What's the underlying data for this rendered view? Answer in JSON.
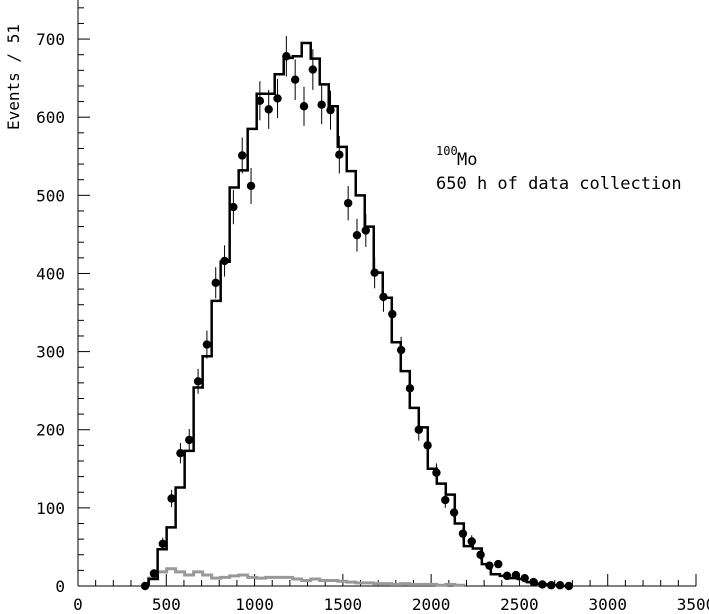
{
  "chart_data": {
    "type": "line",
    "ylabel": "Events / 51",
    "xlim": [
      0,
      3500
    ],
    "ylim": [
      0,
      750
    ],
    "x_ticks": [
      "0",
      "500",
      "1000",
      "1500",
      "2000",
      "2500",
      "3000",
      "3500"
    ],
    "y_ticks": [
      "0",
      "100",
      "200",
      "300",
      "400",
      "500",
      "600",
      "700"
    ],
    "annotation": {
      "isotope_mass": "100",
      "isotope_symbol": "Mo",
      "text": "650 h of data collection"
    },
    "bin_width": 51,
    "series": [
      {
        "kind": "data-points",
        "x": [
          380,
          430,
          480,
          530,
          580,
          630,
          680,
          730,
          780,
          830,
          880,
          930,
          980,
          1030,
          1080,
          1130,
          1180,
          1230,
          1280,
          1330,
          1380,
          1430,
          1480,
          1530,
          1580,
          1630,
          1680,
          1730,
          1780,
          1830,
          1880,
          1930,
          1980,
          2030,
          2080,
          2130,
          2180,
          2230,
          2280,
          2330,
          2380,
          2430,
          2480,
          2530,
          2580,
          2630,
          2680,
          2730,
          2780
        ],
        "y": [
          0,
          16,
          54,
          112,
          170,
          187,
          262,
          309,
          388,
          416,
          485,
          551,
          512,
          621,
          610,
          624,
          678,
          648,
          614,
          661,
          616,
          609,
          552,
          490,
          449,
          455,
          401,
          370,
          348,
          302,
          253,
          200,
          180,
          145,
          110,
          94,
          67,
          57,
          40,
          26,
          28,
          13,
          14,
          10,
          5,
          2,
          1,
          1,
          0
        ],
        "yerr": [
          2,
          4,
          8,
          11,
          13,
          14,
          16,
          18,
          20,
          20,
          22,
          23,
          23,
          25,
          25,
          25,
          26,
          26,
          25,
          26,
          25,
          25,
          24,
          22,
          21,
          21,
          20,
          19,
          19,
          17,
          16,
          14,
          13,
          12,
          10,
          10,
          8,
          8,
          6,
          5,
          5,
          4,
          4,
          3,
          2,
          1,
          1,
          1,
          1
        ]
      },
      {
        "kind": "model-histogram",
        "bin_edges": [
          400,
          451,
          502,
          553,
          604,
          655,
          706,
          757,
          808,
          859,
          910,
          961,
          1012,
          1063,
          1114,
          1165,
          1216,
          1267,
          1318,
          1369,
          1420,
          1471,
          1522,
          1573,
          1624,
          1675,
          1726,
          1777,
          1828,
          1879,
          1930,
          1981,
          2032,
          2083,
          2134,
          2185,
          2236,
          2287,
          2338,
          2389,
          2440,
          2491,
          2542,
          2593,
          2644,
          2695,
          2746,
          2797
        ],
        "values": [
          9,
          47,
          75,
          126,
          173,
          254,
          294,
          365,
          415,
          510,
          532,
          585,
          630,
          630,
          655,
          676,
          678,
          695,
          675,
          642,
          614,
          562,
          531,
          500,
          460,
          401,
          369,
          312,
          275,
          228,
          203,
          150,
          131,
          117,
          80,
          51,
          48,
          28,
          15,
          13,
          10,
          9,
          5,
          3,
          2,
          1,
          0
        ]
      },
      {
        "kind": "background-histogram",
        "bin_edges": [
          400,
          451,
          502,
          553,
          604,
          655,
          706,
          757,
          808,
          859,
          910,
          961,
          1012,
          1063,
          1114,
          1165,
          1216,
          1267,
          1318,
          1369,
          1420,
          1471,
          1522,
          1573,
          1624,
          1675,
          1726,
          1777,
          1828,
          1879,
          1930,
          1981,
          2032,
          2083,
          2134,
          2185
        ],
        "values": [
          10,
          18,
          22,
          18,
          14,
          18,
          14,
          10,
          11,
          13,
          14,
          11,
          10,
          11,
          11,
          11,
          9,
          7,
          9,
          7,
          7,
          6,
          5,
          4,
          4,
          3,
          3,
          2,
          3,
          2,
          2,
          2,
          1,
          2,
          1
        ]
      }
    ]
  }
}
